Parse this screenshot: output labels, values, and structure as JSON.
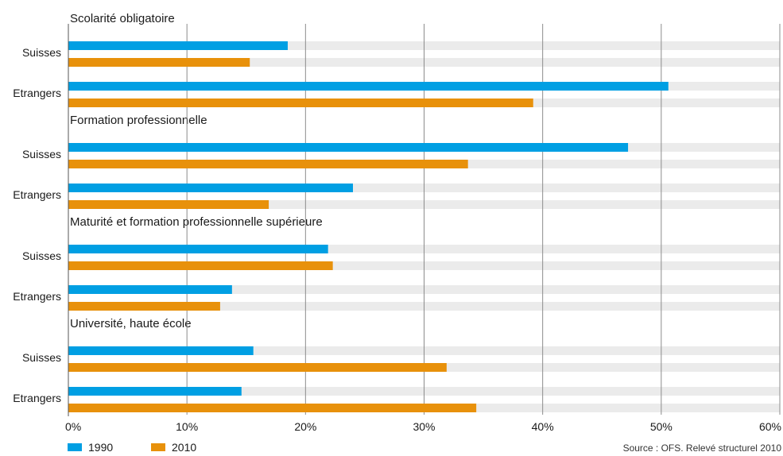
{
  "chart_data": {
    "type": "bar",
    "orientation": "horizontal",
    "xlim": [
      0,
      60
    ],
    "x_ticks": [
      "0%",
      "10%",
      "20%",
      "30%",
      "40%",
      "50%",
      "60%"
    ],
    "series": [
      {
        "name": "1990",
        "color": "#009fe3"
      },
      {
        "name": "2010",
        "color": "#e8910b"
      }
    ],
    "groups": [
      {
        "title": "Scolarité obligatoire",
        "rows": [
          {
            "label": "Suisses",
            "values": [
              18.5,
              15.3
            ]
          },
          {
            "label": "Etrangers",
            "values": [
              50.6,
              39.2
            ]
          }
        ]
      },
      {
        "title": "Formation professionnelle",
        "rows": [
          {
            "label": "Suisses",
            "values": [
              47.2,
              33.7
            ]
          },
          {
            "label": "Etrangers",
            "values": [
              24.0,
              16.9
            ]
          }
        ]
      },
      {
        "title": "Maturité et formation professionnelle supérieure",
        "rows": [
          {
            "label": "Suisses",
            "values": [
              21.9,
              22.3
            ]
          },
          {
            "label": "Etrangers",
            "values": [
              13.8,
              12.8
            ]
          }
        ]
      },
      {
        "title": "Université, haute école",
        "rows": [
          {
            "label": "Suisses",
            "values": [
              15.6,
              31.9
            ]
          },
          {
            "label": "Etrangers",
            "values": [
              14.6,
              34.4
            ]
          }
        ]
      }
    ],
    "grid": true,
    "legend_position": "bottom-left"
  },
  "footer": {
    "source": "Source : OFS. Relevé structurel 2010"
  },
  "colors": {
    "track": "#ebebeb",
    "gridline": "#8c8c8c"
  }
}
